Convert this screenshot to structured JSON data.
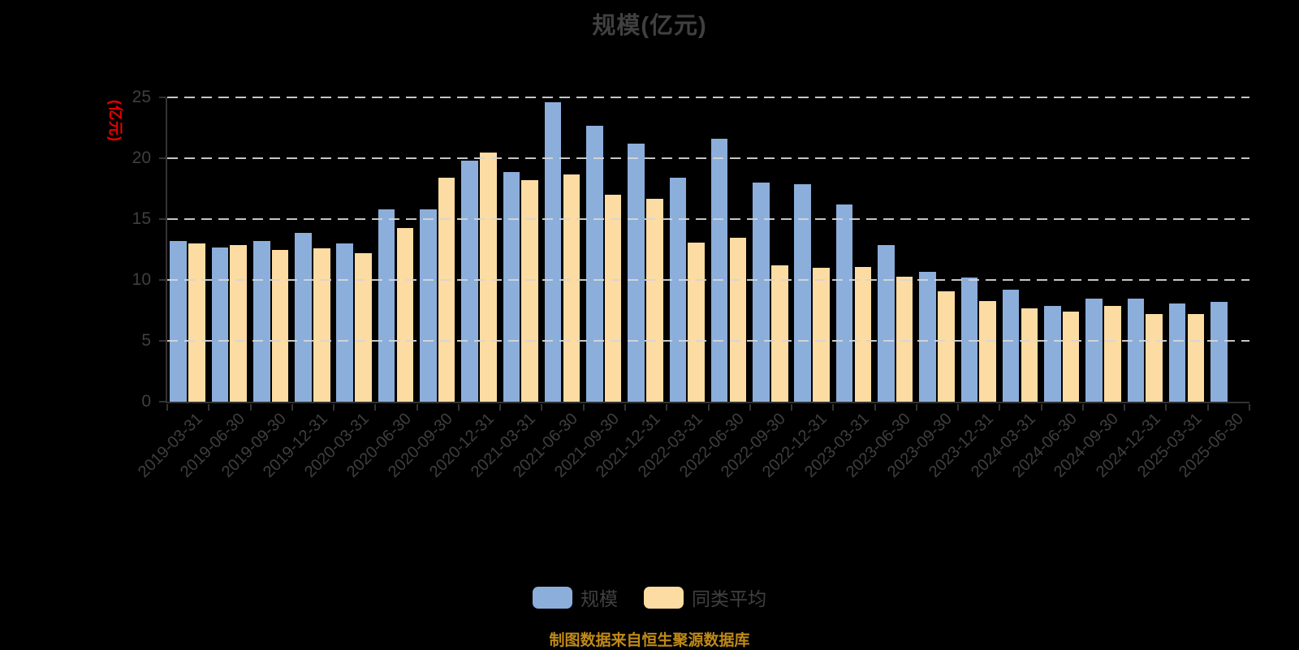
{
  "title": "规模(亿元)",
  "y_axis": {
    "name": "(亿元)",
    "ticks": [
      0,
      5,
      10,
      15,
      20,
      25
    ]
  },
  "legend": {
    "items": [
      {
        "label": "规模",
        "color": "#8caedb"
      },
      {
        "label": "同类平均",
        "color": "#fcdca2"
      }
    ]
  },
  "source_note": "制图数据来自恒生聚源数据库",
  "colors": {
    "background": "#000000",
    "title_text": "#404040",
    "tick_text": "#3f3f3f",
    "axis_line": "#333333",
    "gridline": "#d6d6d6",
    "y_axis_name": "#e60000",
    "source_note": "#c08a18",
    "series_scale": "#8caedb",
    "series_peer_average": "#fcdca2"
  },
  "chart_data": {
    "type": "bar",
    "categories": [
      "2019-03-31",
      "2019-06-30",
      "2019-09-30",
      "2019-12-31",
      "2020-03-31",
      "2020-06-30",
      "2020-09-30",
      "2020-12-31",
      "2021-03-31",
      "2021-06-30",
      "2021-09-30",
      "2021-12-31",
      "2022-03-31",
      "2022-06-30",
      "2022-09-30",
      "2022-12-31",
      "2023-03-31",
      "2023-06-30",
      "2023-09-30",
      "2023-12-31",
      "2024-03-31",
      "2024-06-30",
      "2024-09-30",
      "2024-12-31",
      "2025-03-31",
      "2025-06-30"
    ],
    "series": [
      {
        "name": "规模",
        "color": "#8caedb",
        "values": [
          13.2,
          12.7,
          13.2,
          13.9,
          13.0,
          15.8,
          15.8,
          19.8,
          18.9,
          24.6,
          22.7,
          21.2,
          18.4,
          21.6,
          18.0,
          17.9,
          16.2,
          12.9,
          10.7,
          10.2,
          9.2,
          7.9,
          8.5,
          8.5,
          8.1,
          8.2
        ]
      },
      {
        "name": "同类平均",
        "color": "#fcdca2",
        "values": [
          13.0,
          12.9,
          12.5,
          12.6,
          12.2,
          14.3,
          18.4,
          20.5,
          18.2,
          18.7,
          17.0,
          16.7,
          13.1,
          13.5,
          11.2,
          11.0,
          11.1,
          10.3,
          9.1,
          8.3,
          7.7,
          7.4,
          7.9,
          7.2,
          7.2,
          null
        ]
      }
    ],
    "title": "规模(亿元)",
    "xlabel": "",
    "ylabel": "(亿元)",
    "ylim": [
      0,
      25
    ],
    "grid": "horizontal-dashed",
    "legend_position": "bottom"
  }
}
